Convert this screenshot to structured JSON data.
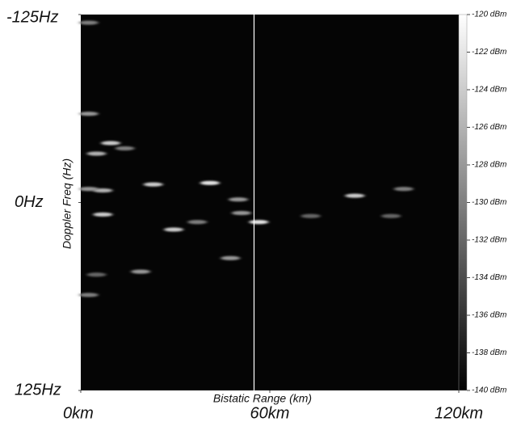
{
  "chart_data": {
    "type": "heatmap",
    "xlabel": "Bistatic Range (km)",
    "ylabel": "Doppler Freq (Hz)",
    "xlim": [
      0,
      120
    ],
    "xticks": [
      {
        "value": 0,
        "label": "0km"
      },
      {
        "value": 60,
        "label": "60km"
      },
      {
        "value": 120,
        "label": "120km"
      }
    ],
    "ylim": [
      -125,
      125
    ],
    "yticks": [
      {
        "value": -125,
        "label": "-125Hz"
      },
      {
        "value": 0,
        "label": "0Hz"
      },
      {
        "value": 125,
        "label": "125Hz"
      }
    ],
    "clim": [
      -140,
      -120
    ],
    "cticks": [
      {
        "value": -120,
        "label": "-120 dBm"
      },
      {
        "value": -122,
        "label": "-122 dBm"
      },
      {
        "value": -124,
        "label": "-124 dBm"
      },
      {
        "value": -126,
        "label": "-126 dBm"
      },
      {
        "value": -128,
        "label": "-128 dBm"
      },
      {
        "value": -130,
        "label": "-130 dBm"
      },
      {
        "value": -132,
        "label": "-132 dBm"
      },
      {
        "value": -134,
        "label": "-134 dBm"
      },
      {
        "value": -136,
        "label": "-136 dBm"
      },
      {
        "value": -138,
        "label": "-138 dBm"
      },
      {
        "value": -140,
        "label": "-140 dBm"
      }
    ],
    "cursor_x": 55,
    "points": {
      "x": [
        9.5,
        5,
        14,
        23,
        41,
        7,
        2.5,
        50,
        7,
        29.5,
        56.5,
        51,
        87,
        102.5,
        47.5,
        19,
        2.5,
        2.5,
        2.5,
        73,
        98.5,
        5,
        37
      ],
      "y": [
        -39.5,
        -32.5,
        -36,
        -12,
        -13,
        -8,
        -9,
        -2,
        8,
        18,
        13,
        7,
        -4.5,
        -9,
        37,
        46,
        61.5,
        -59,
        -119.6,
        9,
        9,
        48,
        13
      ],
      "values": [
        -124,
        -126,
        -130,
        -124,
        -122,
        -126,
        -128,
        -128,
        -124,
        -124,
        -122,
        -128,
        -124,
        -130,
        -128,
        -128,
        -130,
        -128,
        -130,
        -132,
        -132,
        -132,
        -130
      ]
    }
  }
}
